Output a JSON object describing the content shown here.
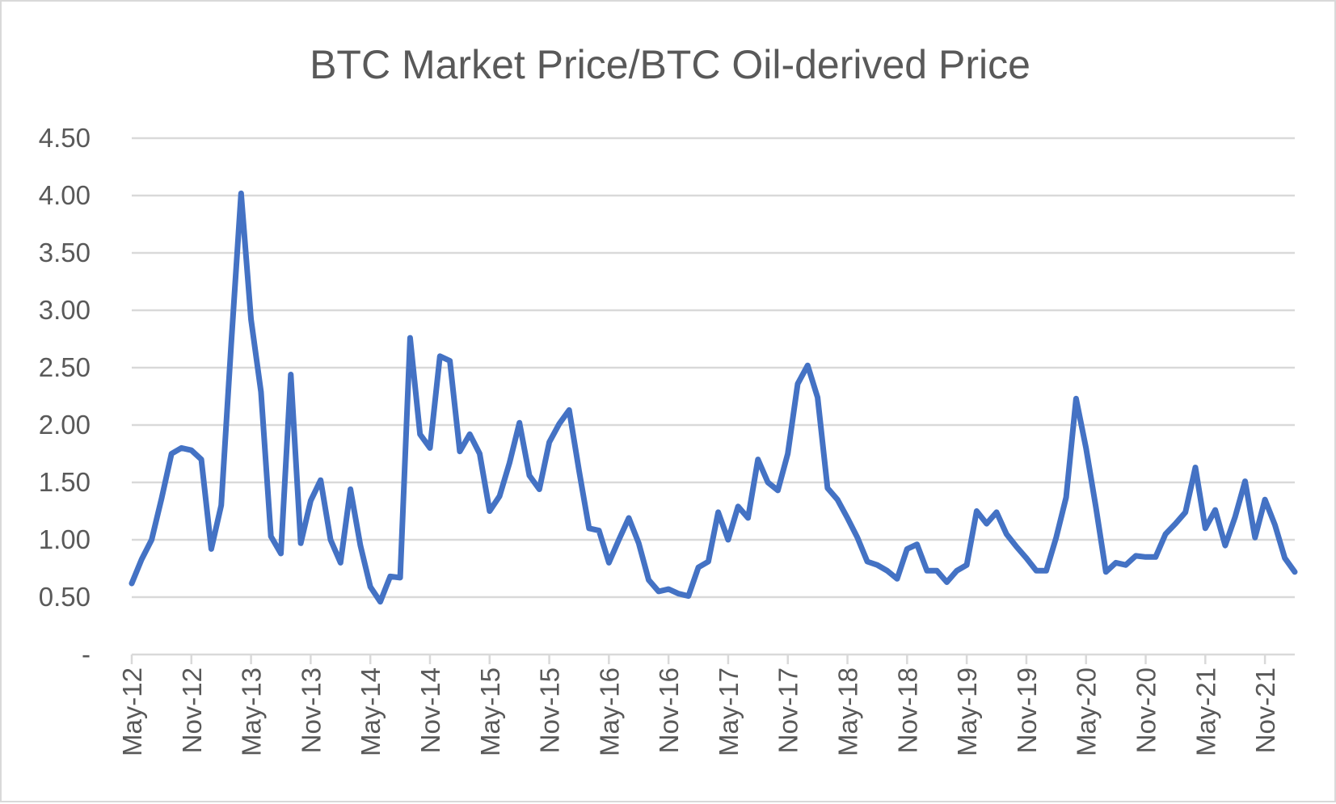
{
  "chart_data": {
    "type": "line",
    "title": "BTC Market Price/BTC Oil-derived Price",
    "xlabel": "",
    "ylabel": "",
    "ylim": [
      0,
      4.5
    ],
    "yticks": [
      0,
      0.5,
      1.0,
      1.5,
      2.0,
      2.5,
      3.0,
      3.5,
      4.0,
      4.5
    ],
    "ytick_labels": [
      "-",
      "0.50",
      "1.00",
      "1.50",
      "2.00",
      "2.50",
      "3.00",
      "3.50",
      "4.00",
      "4.50"
    ],
    "x_tick_labels": [
      "May-12",
      "Nov-12",
      "May-13",
      "Nov-13",
      "May-14",
      "Nov-14",
      "May-15",
      "Nov-15",
      "May-16",
      "Nov-16",
      "May-17",
      "Nov-17",
      "May-18",
      "Nov-18",
      "May-19",
      "Nov-19",
      "May-20",
      "Nov-20",
      "May-21",
      "Nov-21"
    ],
    "grid": true,
    "legend": "none",
    "colors": {
      "series": "#4472c4",
      "grid": "#d9d9d9",
      "text": "#595959"
    },
    "series": [
      {
        "values": [
          0.62,
          0.83,
          1.0,
          1.36,
          1.75,
          1.8,
          1.78,
          1.7,
          0.92,
          1.3,
          2.7,
          4.02,
          2.92,
          2.29,
          1.03,
          0.88,
          2.44,
          0.97,
          1.34,
          1.52,
          1.0,
          0.8,
          1.44,
          0.95,
          0.59,
          0.46,
          0.68,
          0.67,
          2.76,
          1.92,
          1.8,
          2.6,
          2.56,
          1.77,
          1.92,
          1.75,
          1.25,
          1.38,
          1.67,
          2.02,
          1.56,
          1.44,
          1.85,
          2.01,
          2.13,
          1.6,
          1.1,
          1.08,
          0.8,
          1.0,
          1.19,
          0.97,
          0.65,
          0.55,
          0.57,
          0.53,
          0.51,
          0.76,
          0.81,
          1.24,
          1.0,
          1.29,
          1.19,
          1.7,
          1.5,
          1.43,
          1.75,
          2.36,
          2.52,
          2.24,
          1.45,
          1.35,
          1.19,
          1.02,
          0.81,
          0.78,
          0.73,
          0.66,
          0.92,
          0.96,
          0.73,
          0.73,
          0.63,
          0.73,
          0.78,
          1.25,
          1.14,
          1.24,
          1.05,
          0.94,
          0.84,
          0.73,
          0.73,
          1.02,
          1.37,
          2.23,
          1.8,
          1.28,
          0.72,
          0.8,
          0.78,
          0.86,
          0.85,
          0.85,
          1.05,
          1.14,
          1.24,
          1.63,
          1.1,
          1.26,
          0.95,
          1.2,
          1.51,
          1.02,
          1.35,
          1.13,
          0.84,
          0.72
        ]
      }
    ]
  }
}
